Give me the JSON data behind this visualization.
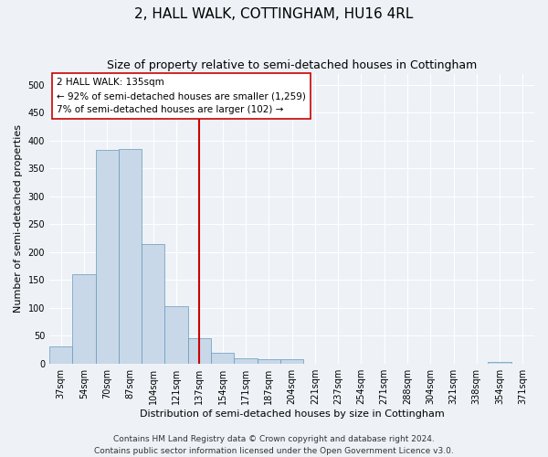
{
  "title": "2, HALL WALK, COTTINGHAM, HU16 4RL",
  "subtitle": "Size of property relative to semi-detached houses in Cottingham",
  "xlabel": "Distribution of semi-detached houses by size in Cottingham",
  "ylabel": "Number of semi-detached properties",
  "categories": [
    "37sqm",
    "54sqm",
    "70sqm",
    "87sqm",
    "104sqm",
    "121sqm",
    "137sqm",
    "154sqm",
    "171sqm",
    "187sqm",
    "204sqm",
    "221sqm",
    "237sqm",
    "254sqm",
    "271sqm",
    "288sqm",
    "304sqm",
    "321sqm",
    "338sqm",
    "354sqm",
    "371sqm"
  ],
  "values": [
    31,
    160,
    383,
    385,
    215,
    103,
    45,
    20,
    10,
    7,
    8,
    0,
    0,
    0,
    0,
    0,
    0,
    0,
    0,
    3,
    0
  ],
  "bar_color": "#c8d8e8",
  "bar_edge_color": "#6699bb",
  "vline_x": 6.0,
  "vline_color": "#cc0000",
  "annotation_line1": "2 HALL WALK: 135sqm",
  "annotation_line2": "← 92% of semi-detached houses are smaller (1,259)",
  "annotation_line3": "7% of semi-detached houses are larger (102) →",
  "annotation_box_color": "#ffffff",
  "annotation_box_edge_color": "#cc0000",
  "ylim": [
    0,
    520
  ],
  "yticks": [
    0,
    50,
    100,
    150,
    200,
    250,
    300,
    350,
    400,
    450,
    500
  ],
  "footer_line1": "Contains HM Land Registry data © Crown copyright and database right 2024.",
  "footer_line2": "Contains public sector information licensed under the Open Government Licence v3.0.",
  "bg_color": "#eef2f7",
  "plot_bg_color": "#eef2f7",
  "grid_color": "#ffffff",
  "title_fontsize": 11,
  "subtitle_fontsize": 9,
  "axis_label_fontsize": 8,
  "tick_fontsize": 7,
  "footer_fontsize": 6.5,
  "annotation_fontsize": 7.5
}
